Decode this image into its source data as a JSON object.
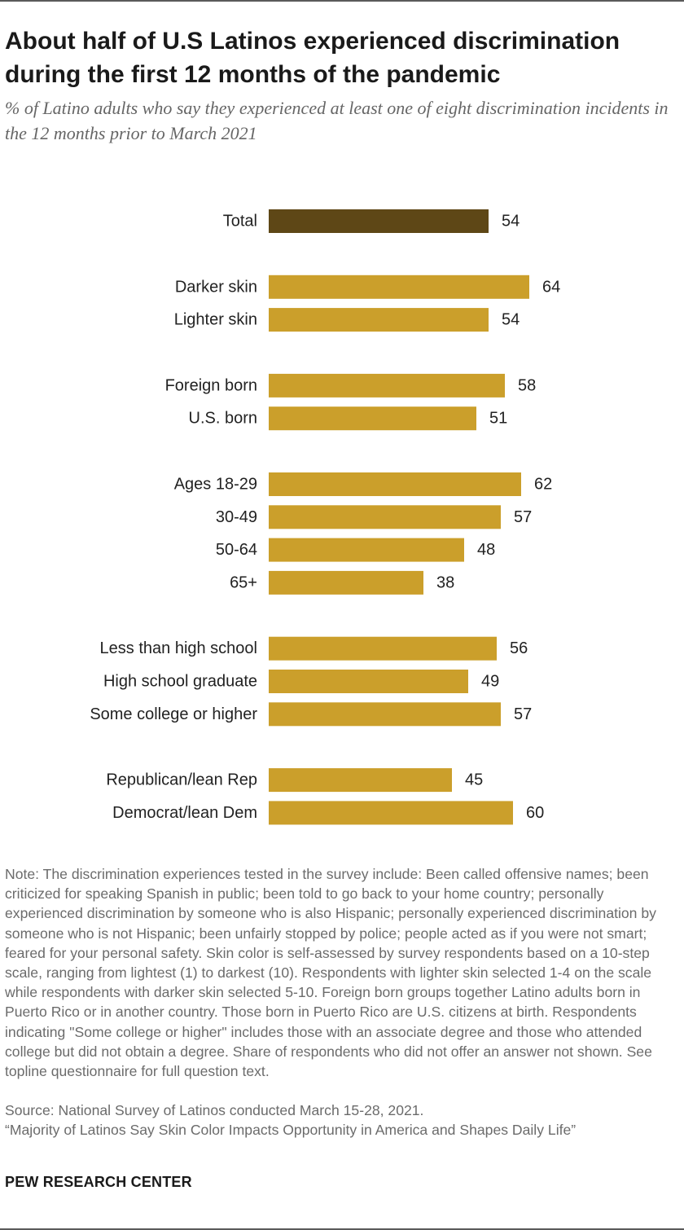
{
  "header": {
    "title": "About half of U.S Latinos experienced discrimination during the first 12 months of the pandemic",
    "subtitle": "% of Latino adults who say they experienced at least one of eight discrimination incidents in the 12 months prior to March 2021"
  },
  "chart_data": {
    "type": "bar",
    "orientation": "horizontal",
    "categories": [
      "Total",
      "Darker skin",
      "Lighter skin",
      "Foreign born",
      "U.S. born",
      "Ages 18-29",
      "30-49",
      "50-64",
      "65+",
      "Less than high school",
      "High school graduate",
      "Some college or higher",
      "Republican/lean Rep",
      "Democrat/lean Dem"
    ],
    "values": [
      54,
      64,
      54,
      58,
      51,
      62,
      57,
      48,
      38,
      56,
      49,
      57,
      45,
      60
    ],
    "groups": [
      1,
      2,
      2,
      3,
      3,
      4,
      4,
      4,
      4,
      5,
      5,
      5,
      6,
      6
    ],
    "highlight_index": 0,
    "colors": {
      "highlight": "#5e4716",
      "bar": "#cb9f2b"
    },
    "xlim": [
      0,
      100
    ],
    "grid": false,
    "legend": "none"
  },
  "footer": {
    "note": "Note: The discrimination experiences tested in the survey include: Been called offensive names; been criticized for speaking Spanish in public; been told to go back to your home country; personally experienced discrimination by someone who is also Hispanic; personally experienced discrimination by someone who is not Hispanic; been unfairly stopped by police; people acted as if you were not smart; feared for your personal safety. Skin color is self-assessed by survey respondents based on a 10-step scale, ranging from lightest (1) to darkest (10). Respondents with lighter skin selected 1-4 on the scale while respondents with darker skin selected 5-10. Foreign born groups together Latino adults born in Puerto Rico or in another country. Those born in Puerto Rico are U.S. citizens at birth. Respondents indicating \"Some college or higher\" includes those with an associate degree and those who attended college but did not obtain a degree. Share of respondents who did not offer an answer not shown. See topline questionnaire for full question text.",
    "source": "Source: National Survey of Latinos conducted March 15-28, 2021.",
    "report": "“Majority of Latinos Say Skin Color Impacts Opportunity in America and Shapes Daily Life”",
    "brand": "PEW RESEARCH CENTER"
  }
}
